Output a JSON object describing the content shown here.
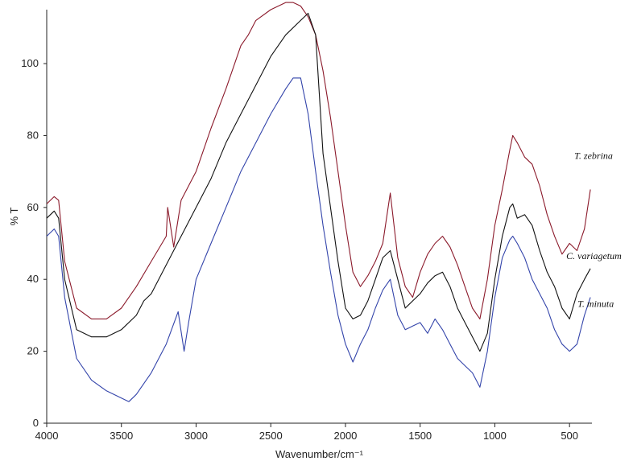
{
  "chart_data": {
    "type": "line",
    "title": "",
    "xlabel": "Wavenumber/cm⁻¹",
    "ylabel": "% T",
    "xlim": [
      4000,
      350
    ],
    "ylim": [
      0,
      115
    ],
    "x_reversed": true,
    "x_ticks": [
      4000,
      3500,
      3000,
      2500,
      2000,
      1500,
      1000,
      500
    ],
    "y_ticks": [
      0,
      20,
      40,
      60,
      80,
      100
    ],
    "grid": false,
    "series": [
      {
        "name": "T. zebrina",
        "color": "#8b1a2b",
        "x": [
          4000,
          3950,
          3920,
          3880,
          3800,
          3700,
          3600,
          3500,
          3400,
          3300,
          3200,
          3190,
          3150,
          3100,
          3000,
          2900,
          2800,
          2700,
          2650,
          2600,
          2500,
          2400,
          2350,
          2300,
          2250,
          2200,
          2150,
          2100,
          2050,
          2000,
          1950,
          1900,
          1850,
          1800,
          1750,
          1700,
          1650,
          1600,
          1550,
          1500,
          1450,
          1400,
          1350,
          1300,
          1250,
          1200,
          1150,
          1100,
          1050,
          1000,
          950,
          900,
          880,
          850,
          800,
          750,
          700,
          650,
          600,
          550,
          500,
          450,
          400,
          360
        ],
        "y": [
          61,
          63,
          62,
          45,
          32,
          29,
          29,
          32,
          38,
          45,
          52,
          60,
          49,
          62,
          70,
          82,
          93,
          105,
          108,
          112,
          115,
          117,
          117,
          116,
          113,
          108,
          98,
          85,
          70,
          55,
          42,
          38,
          41,
          45,
          50,
          64,
          46,
          38,
          35,
          42,
          47,
          50,
          52,
          49,
          44,
          38,
          32,
          29,
          40,
          55,
          65,
          76,
          80,
          78,
          74,
          72,
          66,
          58,
          52,
          47,
          50,
          48,
          54,
          65
        ]
      },
      {
        "name": "C. variagetum",
        "color": "#111111",
        "x": [
          4000,
          3950,
          3920,
          3880,
          3800,
          3700,
          3600,
          3500,
          3400,
          3350,
          3300,
          3200,
          3100,
          3000,
          2900,
          2800,
          2700,
          2600,
          2500,
          2400,
          2300,
          2250,
          2200,
          2150,
          2100,
          2050,
          2000,
          1950,
          1900,
          1850,
          1800,
          1750,
          1700,
          1650,
          1600,
          1550,
          1500,
          1450,
          1400,
          1350,
          1300,
          1250,
          1200,
          1150,
          1100,
          1050,
          1000,
          950,
          900,
          880,
          850,
          800,
          750,
          700,
          650,
          600,
          550,
          500,
          450,
          400,
          360
        ],
        "y": [
          57,
          59,
          57,
          40,
          26,
          24,
          24,
          26,
          30,
          34,
          36,
          44,
          52,
          60,
          68,
          78,
          86,
          94,
          102,
          108,
          112,
          114,
          108,
          75,
          60,
          45,
          32,
          29,
          30,
          34,
          40,
          46,
          48,
          40,
          32,
          34,
          36,
          39,
          41,
          42,
          38,
          32,
          28,
          24,
          20,
          25,
          40,
          52,
          60,
          61,
          57,
          58,
          55,
          48,
          42,
          38,
          32,
          29,
          36,
          40,
          43
        ]
      },
      {
        "name": "T. minuta",
        "color": "#3344aa",
        "x": [
          4000,
          3950,
          3920,
          3880,
          3800,
          3700,
          3600,
          3500,
          3450,
          3400,
          3300,
          3200,
          3120,
          3080,
          3050,
          3000,
          2900,
          2800,
          2700,
          2600,
          2500,
          2400,
          2350,
          2300,
          2250,
          2200,
          2150,
          2100,
          2050,
          2000,
          1950,
          1900,
          1850,
          1800,
          1750,
          1700,
          1650,
          1600,
          1550,
          1500,
          1450,
          1400,
          1350,
          1300,
          1250,
          1200,
          1150,
          1100,
          1050,
          1000,
          950,
          900,
          880,
          850,
          800,
          750,
          700,
          650,
          600,
          550,
          500,
          450,
          400,
          360
        ],
        "y": [
          52,
          54,
          52,
          35,
          18,
          12,
          9,
          7,
          6,
          8,
          14,
          22,
          31,
          20,
          28,
          40,
          50,
          60,
          70,
          78,
          86,
          93,
          96,
          96,
          86,
          70,
          55,
          42,
          30,
          22,
          17,
          22,
          26,
          32,
          37,
          40,
          30,
          26,
          27,
          28,
          25,
          29,
          26,
          22,
          18,
          16,
          14,
          10,
          20,
          35,
          46,
          51,
          52,
          50,
          46,
          40,
          36,
          32,
          26,
          22,
          20,
          22,
          30,
          35
        ]
      }
    ]
  }
}
